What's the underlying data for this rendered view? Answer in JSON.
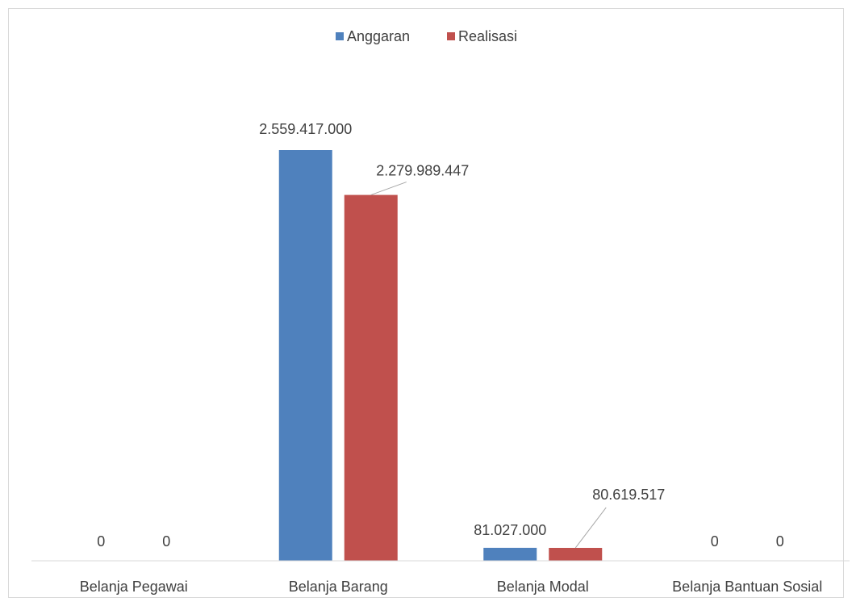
{
  "chart_data": {
    "type": "bar",
    "title": "",
    "xlabel": "",
    "ylabel": "",
    "categories": [
      "Belanja Pegawai",
      "Belanja Barang",
      "Belanja Modal",
      "Belanja Bantuan Sosial"
    ],
    "series": [
      {
        "name": "Anggaran",
        "color": "#4F81BD",
        "values": [
          0,
          2559417000,
          81027000,
          0
        ],
        "labels": [
          "0",
          "2.559.417.000",
          "81.027.000",
          "0"
        ]
      },
      {
        "name": "Realisasi",
        "color": "#C0504D",
        "values": [
          0,
          2279989447,
          80619517,
          0
        ],
        "labels": [
          "0",
          "2.279.989.447",
          "80.619.517",
          "0"
        ]
      }
    ],
    "ylim": [
      0,
      2559417000
    ],
    "grid": false,
    "legend_position": "top"
  }
}
